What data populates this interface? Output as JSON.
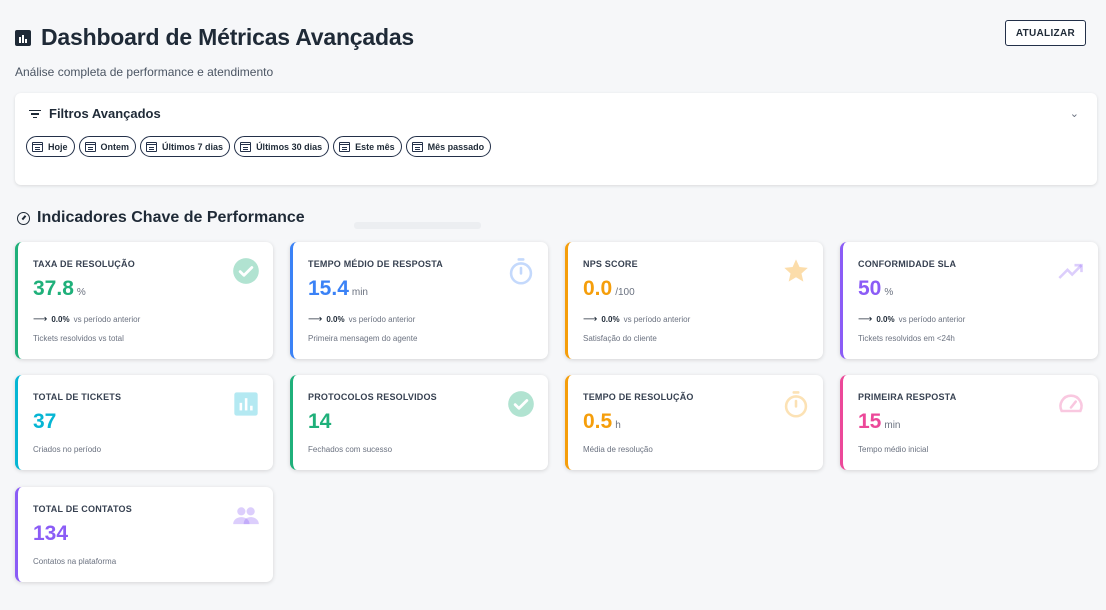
{
  "header": {
    "title": "Dashboard de Métricas Avançadas",
    "subtitle": "Análise completa de performance e atendimento",
    "refresh_label": "ATUALIZAR"
  },
  "filters": {
    "title": "Filtros Avançados",
    "chips": [
      "Hoje",
      "Ontem",
      "Últimos 7 dias",
      "Últimos 30 dias",
      "Este mês",
      "Mês passado"
    ]
  },
  "section": {
    "title": "Indicadores Chave de Performance"
  },
  "trend_suffix": "vs período anterior",
  "cards": [
    {
      "label": "TAXA DE RESOLUÇÃO",
      "value": "37.8",
      "unit": "%",
      "trend": "0.0%",
      "desc": "Tickets resolvidos vs total",
      "color": "#1fb07a",
      "icon": "check-circle-icon"
    },
    {
      "label": "TEMPO MÉDIO DE RESPOSTA",
      "value": "15.4",
      "unit": "min",
      "trend": "0.0%",
      "desc": "Primeira mensagem do agente",
      "color": "#3b82f6",
      "icon": "timer-icon"
    },
    {
      "label": "NPS SCORE",
      "value": "0.0",
      "unit": "/100",
      "trend": "0.0%",
      "desc": "Satisfação do cliente",
      "color": "#f59e0b",
      "icon": "star-icon"
    },
    {
      "label": "CONFORMIDADE SLA",
      "value": "50",
      "unit": "%",
      "trend": "0.0%",
      "desc": "Tickets resolvidos em <24h",
      "color": "#8b5cf6",
      "icon": "trending-up-icon"
    },
    {
      "label": "TOTAL DE TICKETS",
      "value": "37",
      "unit": "",
      "desc": "Criados no período",
      "color": "#06b6d4",
      "icon": "bar-chart-icon"
    },
    {
      "label": "PROTOCOLOS RESOLVIDOS",
      "value": "14",
      "unit": "",
      "desc": "Fechados com sucesso",
      "color": "#1fb07a",
      "icon": "check-circle-icon"
    },
    {
      "label": "TEMPO DE RESOLUÇÃO",
      "value": "0.5",
      "unit": "h",
      "desc": "Média de resolução",
      "color": "#f59e0b",
      "icon": "timer-icon"
    },
    {
      "label": "PRIMEIRA RESPOSTA",
      "value": "15",
      "unit": "min",
      "desc": "Tempo médio inicial",
      "color": "#ec4899",
      "icon": "speedometer-icon"
    },
    {
      "label": "TOTAL DE CONTATOS",
      "value": "134",
      "unit": "",
      "desc": "Contatos na plataforma",
      "color": "#8b5cf6",
      "icon": "people-icon"
    }
  ]
}
